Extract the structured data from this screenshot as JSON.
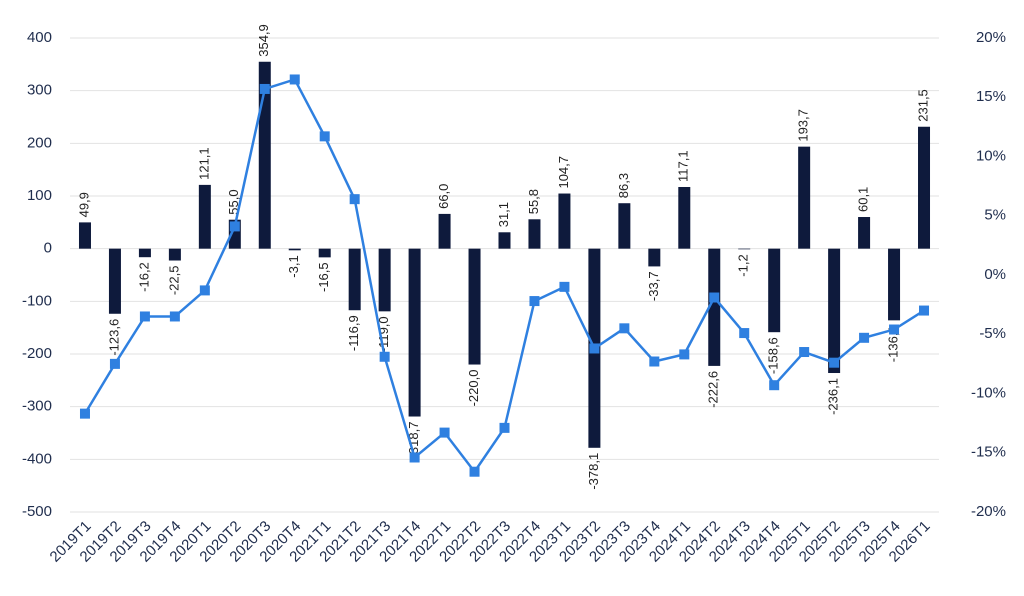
{
  "chart_data": {
    "type": "combo",
    "categories": [
      "2019T1",
      "2019T2",
      "2019T3",
      "2019T4",
      "2020T1",
      "2020T2",
      "2020T3",
      "2020T4",
      "2021T1",
      "2021T2",
      "2021T3",
      "2021T4",
      "2022T1",
      "2022T2",
      "2022T3",
      "2022T4",
      "2023T1",
      "2023T2",
      "2023T3",
      "2023T4",
      "2024T1",
      "2024T2",
      "2024T3",
      "2024T4",
      "2025T1",
      "2025T2",
      "2025T3",
      "2025T4",
      "2026T1"
    ],
    "series": [
      {
        "type": "bar",
        "color": "#0e1a3c",
        "values": [
          49.9,
          -123.6,
          -16.2,
          -22.5,
          121.1,
          55.0,
          354.9,
          -3.1,
          -16.5,
          -116.9,
          -119.0,
          -318.7,
          66.0,
          -220.0,
          31.1,
          55.8,
          104.7,
          -378.1,
          86.3,
          -33.7,
          117.1,
          -222.6,
          -1.2,
          -158.6,
          193.7,
          -236.1,
          60.1,
          -136.1,
          231.5
        ],
        "value_labels": [
          "49,9",
          "-123,6",
          "-16,2",
          "-22,5",
          "121,1",
          "55,0",
          "354,9",
          "-3,1",
          "-16,5",
          "-116,9",
          "-119,0",
          "-318,7",
          "66,0",
          "-220,0",
          "31,1",
          "55,8",
          "104,7",
          "-378,1",
          "86,3",
          "-33,7",
          "117,1",
          "-222,6",
          "-1,2",
          "-158,6",
          "193,7",
          "-236,1",
          "60,1",
          "-136,1",
          "231,5"
        ]
      },
      {
        "type": "line",
        "axis": "y2",
        "color": "#2f80e0",
        "values": [
          -11.7,
          -7.5,
          -3.5,
          -3.5,
          -1.3,
          4.1,
          15.7,
          16.5,
          11.7,
          6.4,
          -6.9,
          -15.4,
          -13.3,
          -16.6,
          -12.9,
          -2.2,
          -1.0,
          -6.2,
          -4.5,
          -7.3,
          -6.7,
          -1.9,
          -4.9,
          -9.3,
          -6.5,
          -7.4,
          -5.3,
          -4.6,
          -3.0
        ]
      }
    ],
    "ylim": [
      -500,
      400
    ],
    "yticks": [
      400,
      300,
      200,
      100,
      0,
      -100,
      -200,
      -300,
      -400,
      -500
    ],
    "y2lim": [
      -20,
      20
    ],
    "y2ticks": [
      {
        "value": 20,
        "label": "20%"
      },
      {
        "value": 15,
        "label": "15%"
      },
      {
        "value": 10,
        "label": "10%"
      },
      {
        "value": 5,
        "label": "5%"
      },
      {
        "value": 0,
        "label": "0%"
      },
      {
        "value": -5,
        "label": "-5%"
      },
      {
        "value": -10,
        "label": "-10%"
      },
      {
        "value": -15,
        "label": "-15%"
      },
      {
        "value": -20,
        "label": "-20%"
      }
    ],
    "grid": true
  }
}
